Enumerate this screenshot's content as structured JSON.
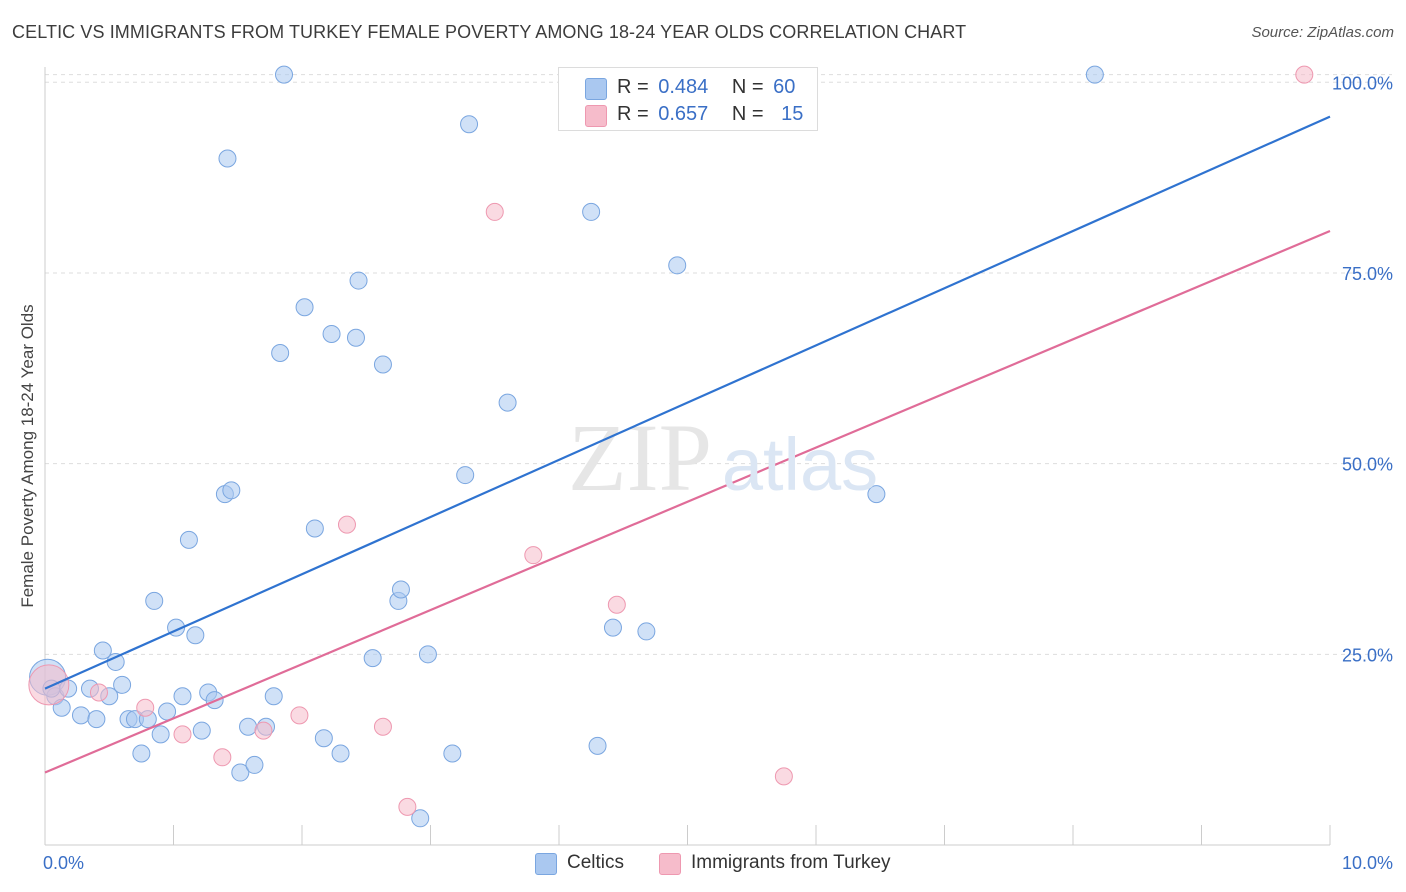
{
  "title": "CELTIC VS IMMIGRANTS FROM TURKEY FEMALE POVERTY AMONG 18-24 YEAR OLDS CORRELATION CHART",
  "source": "Source: ZipAtlas.com",
  "watermark": "ZIPatlas",
  "legend": {
    "rows": [
      {
        "r_label": "R =",
        "r_value": "0.484",
        "n_label": "N =",
        "n_value": "60"
      },
      {
        "r_label": "R =",
        "r_value": "0.657",
        "n_label": "N =",
        "n_value": "15"
      }
    ]
  },
  "bottom_legend": {
    "celtics": "Celtics",
    "turkey": "Immigrants from Turkey"
  },
  "colors": {
    "celtics_fill": "#aac8f0",
    "celtics_stroke": "#7aa6e0",
    "celtics_line": "#2f73d0",
    "turkey_fill": "#f6bccb",
    "turkey_stroke": "#ee98b0",
    "turkey_line": "#e06c98",
    "axis_label": "#3a6fc6",
    "grid": "#dddddd"
  },
  "chart_data": {
    "type": "scatter",
    "title": "CELTIC VS IMMIGRANTS FROM TURKEY FEMALE POVERTY AMONG 18-24 YEAR OLDS CORRELATION CHART",
    "xlabel": "",
    "ylabel": "Female Poverty Among 18-24 Year Olds",
    "xlim": [
      0,
      10
    ],
    "ylim": [
      0,
      102
    ],
    "x_tick_labels": [
      "0.0%",
      "10.0%"
    ],
    "y_tick_labels": [
      "25.0%",
      "50.0%",
      "75.0%",
      "100.0%"
    ],
    "y_ticks": [
      25,
      50,
      75,
      100
    ],
    "x_minor_ticks": [
      0,
      1,
      2,
      3,
      4,
      5,
      6,
      7,
      8,
      9,
      10
    ],
    "grid": true,
    "legend_position": "top-center",
    "series": [
      {
        "name": "Celtics",
        "trend": {
          "x": [
            0,
            10
          ],
          "y": [
            20.5,
            95.5
          ]
        },
        "points": [
          {
            "x": 0.02,
            "y": 22.0
          },
          {
            "x": 0.08,
            "y": 19.5
          },
          {
            "x": 0.13,
            "y": 18.0
          },
          {
            "x": 0.18,
            "y": 20.5
          },
          {
            "x": 0.28,
            "y": 17.0
          },
          {
            "x": 0.35,
            "y": 20.5
          },
          {
            "x": 0.4,
            "y": 16.5
          },
          {
            "x": 0.45,
            "y": 25.5
          },
          {
            "x": 0.5,
            "y": 19.5
          },
          {
            "x": 0.55,
            "y": 24.0
          },
          {
            "x": 0.6,
            "y": 21.0
          },
          {
            "x": 0.65,
            "y": 16.5
          },
          {
            "x": 0.7,
            "y": 16.5
          },
          {
            "x": 0.75,
            "y": 12.0
          },
          {
            "x": 0.8,
            "y": 16.5
          },
          {
            "x": 0.85,
            "y": 32.0
          },
          {
            "x": 0.9,
            "y": 14.5
          },
          {
            "x": 0.95,
            "y": 17.5
          },
          {
            "x": 1.02,
            "y": 28.5
          },
          {
            "x": 1.07,
            "y": 19.5
          },
          {
            "x": 1.12,
            "y": 40.0
          },
          {
            "x": 1.17,
            "y": 27.5
          },
          {
            "x": 1.22,
            "y": 15.0
          },
          {
            "x": 1.27,
            "y": 20.0
          },
          {
            "x": 1.32,
            "y": 19.0
          },
          {
            "x": 1.4,
            "y": 46.0
          },
          {
            "x": 1.42,
            "y": 90.0
          },
          {
            "x": 1.45,
            "y": 46.5
          },
          {
            "x": 1.52,
            "y": 9.5
          },
          {
            "x": 1.58,
            "y": 15.5
          },
          {
            "x": 1.63,
            "y": 10.5
          },
          {
            "x": 1.72,
            "y": 15.5
          },
          {
            "x": 1.78,
            "y": 19.5
          },
          {
            "x": 1.83,
            "y": 64.5
          },
          {
            "x": 1.86,
            "y": 101.0
          },
          {
            "x": 2.02,
            "y": 70.5
          },
          {
            "x": 2.1,
            "y": 41.5
          },
          {
            "x": 2.17,
            "y": 14.0
          },
          {
            "x": 2.23,
            "y": 67.0
          },
          {
            "x": 2.3,
            "y": 12.0
          },
          {
            "x": 2.42,
            "y": 66.5
          },
          {
            "x": 2.44,
            "y": 74.0
          },
          {
            "x": 2.55,
            "y": 24.5
          },
          {
            "x": 2.63,
            "y": 63.0
          },
          {
            "x": 2.75,
            "y": 32.0
          },
          {
            "x": 2.77,
            "y": 33.5
          },
          {
            "x": 2.92,
            "y": 3.5
          },
          {
            "x": 2.98,
            "y": 25.0
          },
          {
            "x": 3.17,
            "y": 12.0
          },
          {
            "x": 3.27,
            "y": 48.5
          },
          {
            "x": 3.3,
            "y": 94.5
          },
          {
            "x": 3.6,
            "y": 58.0
          },
          {
            "x": 4.25,
            "y": 83.0
          },
          {
            "x": 4.3,
            "y": 13.0
          },
          {
            "x": 4.42,
            "y": 28.5
          },
          {
            "x": 4.68,
            "y": 28.0
          },
          {
            "x": 4.92,
            "y": 76.0
          },
          {
            "x": 6.47,
            "y": 46.0
          },
          {
            "x": 8.17,
            "y": 101.0
          },
          {
            "x": 0.05,
            "y": 20.5
          }
        ]
      },
      {
        "name": "Immigrants from Turkey",
        "trend": {
          "x": [
            0,
            10
          ],
          "y": [
            9.5,
            80.5
          ]
        },
        "points": [
          {
            "x": 0.03,
            "y": 21.0
          },
          {
            "x": 0.42,
            "y": 20.0
          },
          {
            "x": 0.78,
            "y": 18.0
          },
          {
            "x": 1.07,
            "y": 14.5
          },
          {
            "x": 1.38,
            "y": 11.5
          },
          {
            "x": 1.7,
            "y": 15.0
          },
          {
            "x": 1.98,
            "y": 17.0
          },
          {
            "x": 2.35,
            "y": 42.0
          },
          {
            "x": 2.63,
            "y": 15.5
          },
          {
            "x": 2.82,
            "y": 5.0
          },
          {
            "x": 3.5,
            "y": 83.0
          },
          {
            "x": 3.8,
            "y": 38.0
          },
          {
            "x": 4.45,
            "y": 31.5
          },
          {
            "x": 5.75,
            "y": 9.0
          },
          {
            "x": 9.8,
            "y": 101.0
          }
        ]
      }
    ]
  }
}
